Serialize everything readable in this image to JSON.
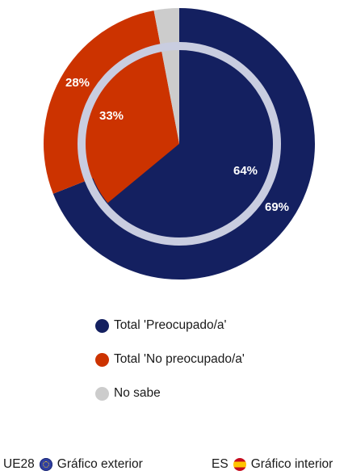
{
  "chart_data": {
    "type": "pie",
    "rings": [
      {
        "name": "UE28",
        "role": "Gráfico exterior",
        "values": [
          {
            "category": "Total 'Preocupado/a'",
            "value": 69,
            "label": "69%"
          },
          {
            "category": "Total 'No preocupado/a'",
            "value": 28,
            "label": "28%"
          },
          {
            "category": "No sabe",
            "value": 3,
            "label": ""
          }
        ]
      },
      {
        "name": "ES",
        "role": "Gráfico interior",
        "values": [
          {
            "category": "Total 'Preocupado/a'",
            "value": 64,
            "label": "64%"
          },
          {
            "category": "Total 'No preocupado/a'",
            "value": 33,
            "label": "33%"
          },
          {
            "category": "No sabe",
            "value": 3,
            "label": ""
          }
        ]
      }
    ],
    "colors": [
      "#142060",
      "#cc3300",
      "#cccccc"
    ],
    "ring_separator_color": "#c9cde0",
    "legend": {
      "placement": "bottom",
      "items": [
        {
          "label": "Total 'Preocupado/a'",
          "color": "#142060"
        },
        {
          "label": "Total 'No preocupado/a'",
          "color": "#cc3300"
        },
        {
          "label": "No sabe",
          "color": "#cccccc"
        }
      ]
    }
  },
  "footer": {
    "outer_code": "UE28",
    "outer_label": "Gráfico exterior",
    "outer_icon": "eu-flag-icon",
    "inner_code": "ES",
    "inner_label": "Gráfico interior",
    "inner_icon": "spain-flag-icon"
  }
}
